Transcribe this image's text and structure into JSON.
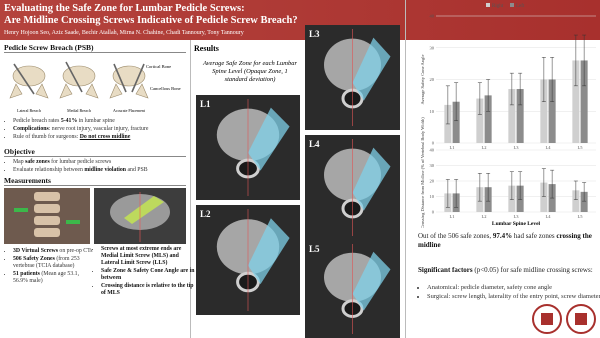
{
  "header": {
    "title_lines": [
      "Evaluating the Safe Zone for Lumbar Pedicle Screws:",
      "Are Midline Crossing Screws Indicative of Pedicle Screw Breach?"
    ],
    "authors": "Henry Hojoon Seo, Aziz Saade, Bechir Atallah, Mirna N. Chahine, Chadi Tannoury, Tony Tannoury"
  },
  "breach": {
    "heading": "Pedicle Screw Breach (PSB)",
    "figure_labels": [
      "Cortical Bone",
      "Cancellous Bone",
      "Lateral Breach",
      "Medial Breach",
      "Accurate Placement"
    ],
    "bullets": [
      [
        {
          "text": "Pedicle breach rates "
        },
        {
          "text": "5-41%",
          "bold": true
        },
        {
          "text": " in lumbar spine"
        }
      ],
      [
        {
          "text": "Complications",
          "bold": true
        },
        {
          "text": ": nerve root injury, vascular injury, fracture"
        }
      ],
      [
        {
          "text": "Rule of thumb for surgeons: "
        },
        {
          "text": "Do not cross midline",
          "bold": true,
          "underline": true
        }
      ]
    ]
  },
  "objective": {
    "heading": "Objective",
    "bullets": [
      [
        {
          "text": "Map "
        },
        {
          "text": "safe zones",
          "bold": true
        },
        {
          "text": " for lumbar pedicle screws"
        }
      ],
      [
        {
          "text": "Evaluate relationship between "
        },
        {
          "text": "midline violation",
          "bold": true
        },
        {
          "text": " and PSB"
        }
      ]
    ]
  },
  "measurements": {
    "heading": "Measurements",
    "bullets_left": [
      [
        {
          "text": "3D Virtual Screws",
          "bold": true
        },
        {
          "text": " on pre-op CTs"
        }
      ],
      [
        {
          "text": "506 Safety Zones",
          "bold": true
        },
        {
          "text": " (from 253 vertebrae (TCIA database)"
        }
      ],
      [
        {
          "text": "51 patients",
          "bold": true
        },
        {
          "text": " (Mean age 53.1, 56.9% male)"
        }
      ]
    ],
    "bullets_right": [
      [
        {
          "text": "Screws at most extreme ends are Medial Limit Screw (MLS) and Lateral Limit Screw (LLS)",
          "bold": true
        }
      ],
      [
        {
          "text": "Safe Zone & Safety Cone Angle are in between",
          "bold": true
        }
      ],
      [
        {
          "text": "Crossing distance is relative to the tip of MLS",
          "bold": true
        }
      ]
    ]
  },
  "results": {
    "heading": "Results",
    "subtitle": "Average Safe Zone for each Lumbar Spine Level (Opaque Zone, 1 standard deviation)",
    "ct_labels": [
      "L1",
      "L2",
      "L3",
      "L4",
      "L5"
    ]
  },
  "charts": [
    {
      "type": "bar",
      "ylabel": "Average Safety Cone Angle",
      "categories": [
        "L1",
        "L2",
        "L3",
        "L4",
        "L5"
      ],
      "series": [
        {
          "name": "Right",
          "color": "#cfcfcf",
          "values": [
            12,
            14,
            17,
            20,
            26
          ],
          "errors": [
            6,
            5,
            5,
            7,
            8
          ]
        },
        {
          "name": "Left",
          "color": "#8c8c8c",
          "values": [
            13,
            15,
            17,
            20,
            26
          ],
          "errors": [
            6,
            5,
            5,
            7,
            8
          ]
        }
      ],
      "ylim": [
        0,
        40
      ],
      "yticks": [
        0,
        10,
        20,
        30,
        40
      ]
    },
    {
      "type": "bar",
      "ylabel": "Average Crossing Distance from Midline (% of Vertebral Body Width)",
      "xlabel": "Lumbar Spine Level",
      "categories": [
        "L1",
        "L2",
        "L3",
        "L4",
        "L5"
      ],
      "series": [
        {
          "name": "Right",
          "color": "#cfcfcf",
          "values": [
            12,
            16,
            17,
            19,
            14
          ],
          "errors": [
            9,
            9,
            9,
            9,
            6
          ]
        },
        {
          "name": "Left",
          "color": "#8c8c8c",
          "values": [
            12,
            16,
            17,
            18,
            13
          ],
          "errors": [
            9,
            9,
            9,
            9,
            6
          ]
        }
      ],
      "ylim": [
        0,
        40
      ],
      "yticks": [
        0,
        10,
        20,
        30,
        40
      ]
    }
  ],
  "conclusion": {
    "summary": [
      {
        "text": "Out of the 506 safe zones, "
      },
      {
        "text": "97.4%",
        "bold": true
      },
      {
        "text": " had safe zones "
      },
      {
        "text": "crossing the midline",
        "bold": true
      }
    ],
    "factors_intro": [
      {
        "text": "Significant factors",
        "bold": true
      },
      {
        "text": " (p<0.05) for safe midline crossing screws:"
      }
    ],
    "factors": [
      [
        {
          "text": "Anatomical: pedicle diameter, safety cone angle"
        }
      ],
      [
        {
          "text": "Surgical: screw length, laterality of the entry point, screw diameter"
        }
      ]
    ]
  }
}
